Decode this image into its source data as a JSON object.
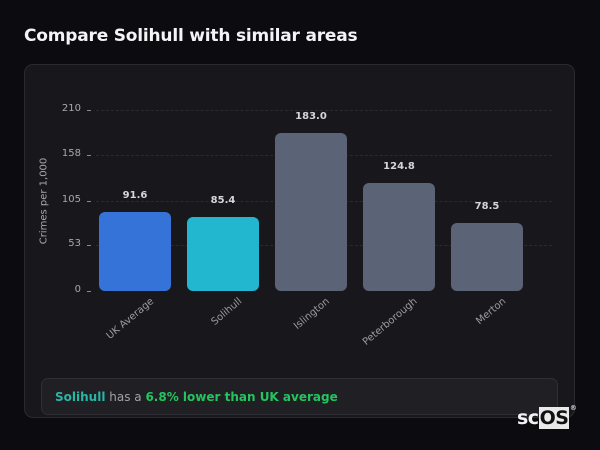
{
  "header": {
    "title": "Compare Solihull with similar areas"
  },
  "chart_data": {
    "type": "bar",
    "title": "Compare Solihull with similar areas",
    "xlabel": "",
    "ylabel": "Crimes per 1,000",
    "ylim": [
      0,
      210
    ],
    "yticks": [
      "210",
      "158",
      "105",
      "53",
      "0"
    ],
    "grid": true,
    "categories": [
      "UK Average",
      "Solihull",
      "Islington",
      "Peterborough",
      "Merton"
    ],
    "values": [
      91.6,
      85.4,
      183.0,
      124.8,
      78.5
    ],
    "value_labels": [
      "91.6",
      "85.4",
      "183.0",
      "124.8",
      "78.5"
    ],
    "colors": [
      "#3673d8",
      "#22b6cf",
      "#5b6477",
      "#5b6477",
      "#5b6477"
    ]
  },
  "summary": {
    "area": "Solihull",
    "mid": " has a ",
    "comparison": "6.8% lower than UK average",
    "area_color": "#2ab6a6",
    "comparison_color": "#22c55e"
  },
  "logo": {
    "text_a": "sc",
    "text_b": "OS",
    "reg": "®"
  }
}
